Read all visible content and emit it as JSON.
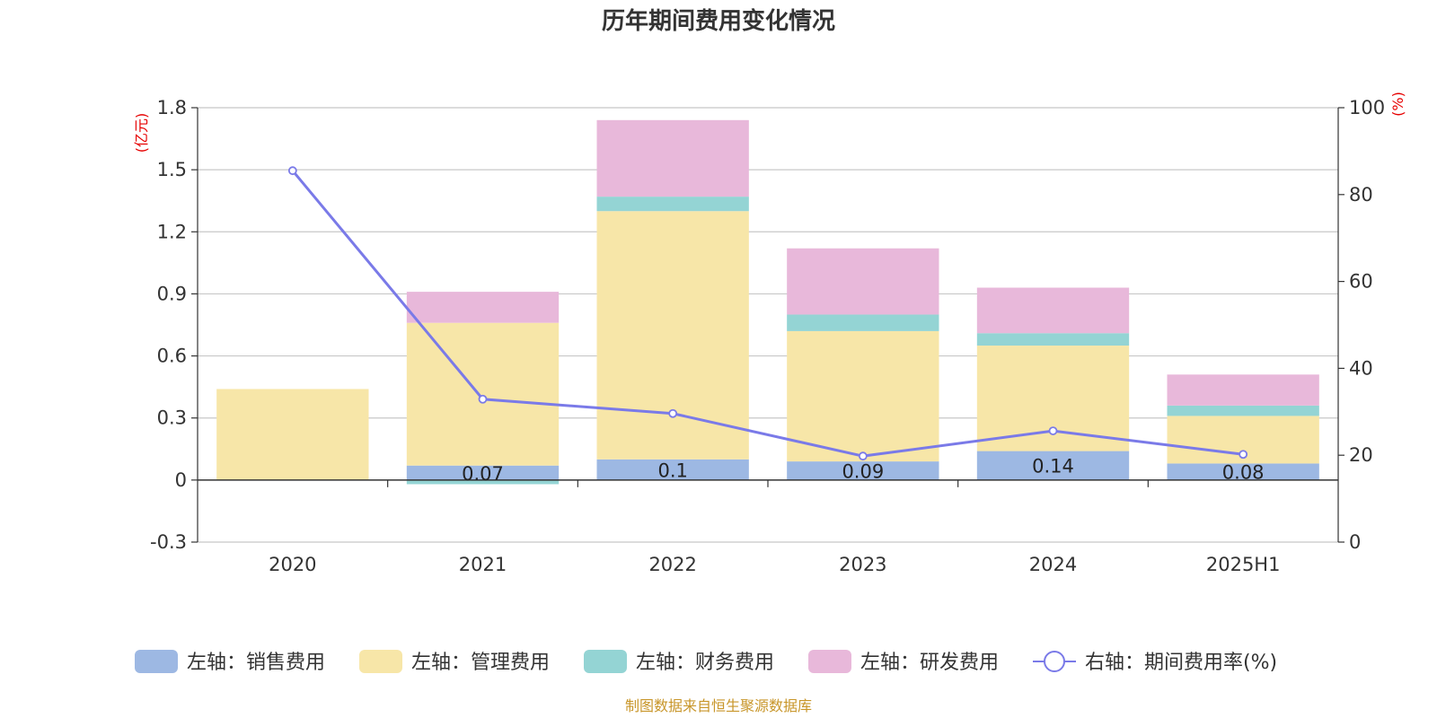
{
  "colors": {
    "sales": "#9db8e3",
    "admin": "#f7e6a8",
    "finance": "#94d4d4",
    "rnd": "#e8b8da",
    "rate": "#7a7ae8",
    "unit": "#e60000",
    "source": "#c8962a",
    "grid": "#c8c8c8",
    "axis": "#333333"
  },
  "chart_data": {
    "type": "bar",
    "stacked": true,
    "title": "历年期间费用变化情况",
    "left_unit": "(亿元)",
    "right_unit": "(%)",
    "categories": [
      "2020",
      "2021",
      "2022",
      "2023",
      "2024",
      "2025H1"
    ],
    "ylim_left": [
      -0.3,
      1.8
    ],
    "yticks_left": [
      "-0.3",
      "0",
      "0.3",
      "0.6",
      "0.9",
      "1.2",
      "1.5",
      "1.8"
    ],
    "ylim_right": [
      0,
      100
    ],
    "yticks_right": [
      "0",
      "20",
      "40",
      "60",
      "80",
      "100"
    ],
    "grid": true,
    "series": [
      {
        "name": "左轴：销售费用",
        "key": "sales",
        "axis": "left",
        "values": [
          0,
          0.07,
          0.1,
          0.09,
          0.14,
          0.08
        ]
      },
      {
        "name": "左轴：管理费用",
        "key": "admin",
        "axis": "left",
        "values": [
          0.44,
          0.69,
          1.2,
          0.63,
          0.51,
          0.23
        ]
      },
      {
        "name": "左轴：财务费用",
        "key": "finance",
        "axis": "left",
        "values": [
          0,
          -0.02,
          0.07,
          0.08,
          0.06,
          0.05
        ]
      },
      {
        "name": "左轴：研发费用",
        "key": "rnd",
        "axis": "left",
        "values": [
          0,
          0.15,
          0.37,
          0.32,
          0.22,
          0.15
        ]
      },
      {
        "name": "右轴：期间费用率(%)",
        "key": "rate",
        "axis": "right",
        "type": "line",
        "values": [
          85.5,
          32.9,
          29.6,
          19.8,
          25.6,
          20.2
        ]
      }
    ],
    "data_labels": [
      "",
      "0.07",
      "0.1",
      "0.09",
      "0.14",
      "0.08"
    ],
    "legend_position": "bottom"
  },
  "source_text": "制图数据来自恒生聚源数据库"
}
